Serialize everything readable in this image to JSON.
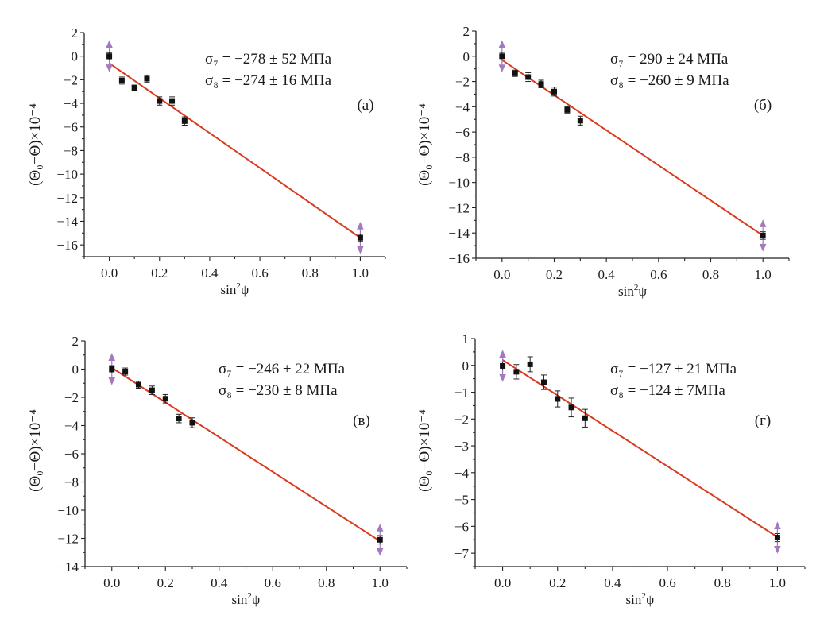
{
  "chart_data": [
    {
      "type": "scatter",
      "panel_label": "(а)",
      "xlabel": "sin²ψ",
      "xlabel_base": "sin",
      "xlabel_sup": "2",
      "xlabel_tail": "ψ",
      "ylabel": "(Θ₀−Θ)×10⁻⁴",
      "xlim": [
        -0.1,
        1.1
      ],
      "ylim": [
        -17,
        2
      ],
      "xticks": [
        0.0,
        0.2,
        0.4,
        0.6,
        0.8,
        1.0
      ],
      "xtick_labels": [
        "0.0",
        "0.2",
        "0.4",
        "0.6",
        "0.8",
        "1.0"
      ],
      "yticks": [
        2,
        0,
        -2,
        -4,
        -6,
        -8,
        -10,
        -12,
        -14,
        -16
      ],
      "ytick_labels": [
        "2",
        "0",
        "−2",
        "−4",
        "−6",
        "−8",
        "−10",
        "−12",
        "−14",
        "−16"
      ],
      "annotations": [
        "σ₇ = −278 ± 52 МПа",
        "σ₈ = −274 ± 16 МПа"
      ],
      "points": [
        {
          "x": 0.0,
          "y": 0.0,
          "err": 0.3,
          "arrows": true
        },
        {
          "x": 0.05,
          "y": -2.07,
          "err": 0.3
        },
        {
          "x": 0.1,
          "y": -2.7,
          "err": 0.25
        },
        {
          "x": 0.15,
          "y": -1.9,
          "err": 0.3
        },
        {
          "x": 0.2,
          "y": -3.8,
          "err": 0.35
        },
        {
          "x": 0.25,
          "y": -3.8,
          "err": 0.35
        },
        {
          "x": 0.3,
          "y": -5.5,
          "err": 0.35
        },
        {
          "x": 1.0,
          "y": -15.4,
          "err": 0.3,
          "arrows": true
        }
      ],
      "fit": {
        "x": [
          0.0,
          1.0
        ],
        "y": [
          -0.6,
          -15.4
        ]
      }
    },
    {
      "type": "scatter",
      "panel_label": "(б)",
      "xlabel": "sin²ψ",
      "xlabel_base": "sin",
      "xlabel_sup": "2",
      "xlabel_tail": "ψ",
      "ylabel": "(Θ₀−Θ)×10⁻⁴",
      "xlim": [
        -0.1,
        1.1
      ],
      "ylim": [
        -16,
        2
      ],
      "xticks": [
        0.0,
        0.2,
        0.4,
        0.6,
        0.8,
        1.0
      ],
      "xtick_labels": [
        "0.0",
        "0.2",
        "0.4",
        "0.6",
        "0.8",
        "1.0"
      ],
      "yticks": [
        2,
        0,
        -2,
        -4,
        -6,
        -8,
        -10,
        -12,
        -14,
        -16
      ],
      "ytick_labels": [
        "2",
        "0",
        "−2",
        "−4",
        "−6",
        "−8",
        "−10",
        "−12",
        "−14",
        "−16"
      ],
      "annotations": [
        "σ₇ =  290 ± 24 МПа",
        "σ₈ = −260 ± 9 МПа"
      ],
      "points": [
        {
          "x": 0.0,
          "y": 0.0,
          "err": 0.3,
          "arrows": true
        },
        {
          "x": 0.05,
          "y": -1.35,
          "err": 0.25
        },
        {
          "x": 0.1,
          "y": -1.65,
          "err": 0.35
        },
        {
          "x": 0.15,
          "y": -2.2,
          "err": 0.3
        },
        {
          "x": 0.2,
          "y": -2.8,
          "err": 0.35
        },
        {
          "x": 0.25,
          "y": -4.25,
          "err": 0.25
        },
        {
          "x": 0.3,
          "y": -5.1,
          "err": 0.35
        },
        {
          "x": 1.0,
          "y": -14.2,
          "err": 0.3,
          "arrows": true
        }
      ],
      "fit": {
        "x": [
          0.0,
          1.0
        ],
        "y": [
          -0.3,
          -14.2
        ]
      }
    },
    {
      "type": "scatter",
      "panel_label": "(в)",
      "xlabel": "sin²ψ",
      "xlabel_base": "sin",
      "xlabel_sup": "2",
      "xlabel_tail": "ψ",
      "ylabel": "(Θ₀−Θ)×10⁻⁴",
      "xlim": [
        -0.1,
        1.1
      ],
      "ylim": [
        -14,
        2
      ],
      "xticks": [
        0.0,
        0.2,
        0.4,
        0.6,
        0.8,
        1.0
      ],
      "xtick_labels": [
        "0.0",
        "0.2",
        "0.4",
        "0.6",
        "0.8",
        "1.0"
      ],
      "yticks": [
        2,
        0,
        -2,
        -4,
        -6,
        -8,
        -10,
        -12,
        -14
      ],
      "ytick_labels": [
        "2",
        "0",
        "−2",
        "−4",
        "−6",
        "−8",
        "−10",
        "−12",
        "−14"
      ],
      "annotations": [
        "σ₇ = −246 ± 22 МПа",
        "σ₈ = −230 ± 8 МПа"
      ],
      "points": [
        {
          "x": 0.0,
          "y": 0.0,
          "err": 0.25,
          "arrows": true
        },
        {
          "x": 0.05,
          "y": -0.17,
          "err": 0.25
        },
        {
          "x": 0.1,
          "y": -1.1,
          "err": 0.25
        },
        {
          "x": 0.15,
          "y": -1.5,
          "err": 0.3
        },
        {
          "x": 0.2,
          "y": -2.1,
          "err": 0.3
        },
        {
          "x": 0.25,
          "y": -3.5,
          "err": 0.3
        },
        {
          "x": 0.3,
          "y": -3.8,
          "err": 0.35
        },
        {
          "x": 1.0,
          "y": -12.1,
          "err": 0.3,
          "arrows": true
        }
      ],
      "fit": {
        "x": [
          0.0,
          1.0
        ],
        "y": [
          0.1,
          -12.2
        ]
      }
    },
    {
      "type": "scatter",
      "panel_label": "(г)",
      "xlabel": "sin²ψ",
      "xlabel_base": "sin",
      "xlabel_sup": "2",
      "xlabel_tail": "ψ",
      "ylabel": "(Θ₀−Θ)×10⁻⁴",
      "xlim": [
        -0.1,
        1.1
      ],
      "ylim": [
        -7.5,
        1
      ],
      "xticks": [
        0.0,
        0.2,
        0.4,
        0.6,
        0.8,
        1.0
      ],
      "xtick_labels": [
        "0.0",
        "0.2",
        "0.4",
        "0.6",
        "0.8",
        "1.0"
      ],
      "yticks": [
        1,
        0,
        -1,
        -2,
        -3,
        -4,
        -5,
        -6,
        -7
      ],
      "ytick_labels": [
        "1",
        "0",
        "−1",
        "−2",
        "−3",
        "−4",
        "−5",
        "−6",
        "−7"
      ],
      "annotations": [
        "σ₇ = −127 ± 21 МПа",
        "σ₈ = −124 ± 7МПа"
      ],
      "points": [
        {
          "x": 0.0,
          "y": -0.02,
          "err": 0.15,
          "arrows": true
        },
        {
          "x": 0.05,
          "y": -0.24,
          "err": 0.27
        },
        {
          "x": 0.1,
          "y": 0.04,
          "err": 0.28
        },
        {
          "x": 0.15,
          "y": -0.63,
          "err": 0.27
        },
        {
          "x": 0.2,
          "y": -1.25,
          "err": 0.3
        },
        {
          "x": 0.25,
          "y": -1.57,
          "err": 0.35
        },
        {
          "x": 0.3,
          "y": -1.97,
          "err": 0.33
        },
        {
          "x": 1.0,
          "y": -6.42,
          "err": 0.15,
          "arrows": true
        }
      ],
      "fit": {
        "x": [
          0.0,
          1.0
        ],
        "y": [
          0.2,
          -6.4
        ]
      }
    }
  ],
  "colors": {
    "fit_line": "#d9391f",
    "marker": "#111111",
    "arrow": "#a37ac0",
    "axis": "#222222"
  }
}
